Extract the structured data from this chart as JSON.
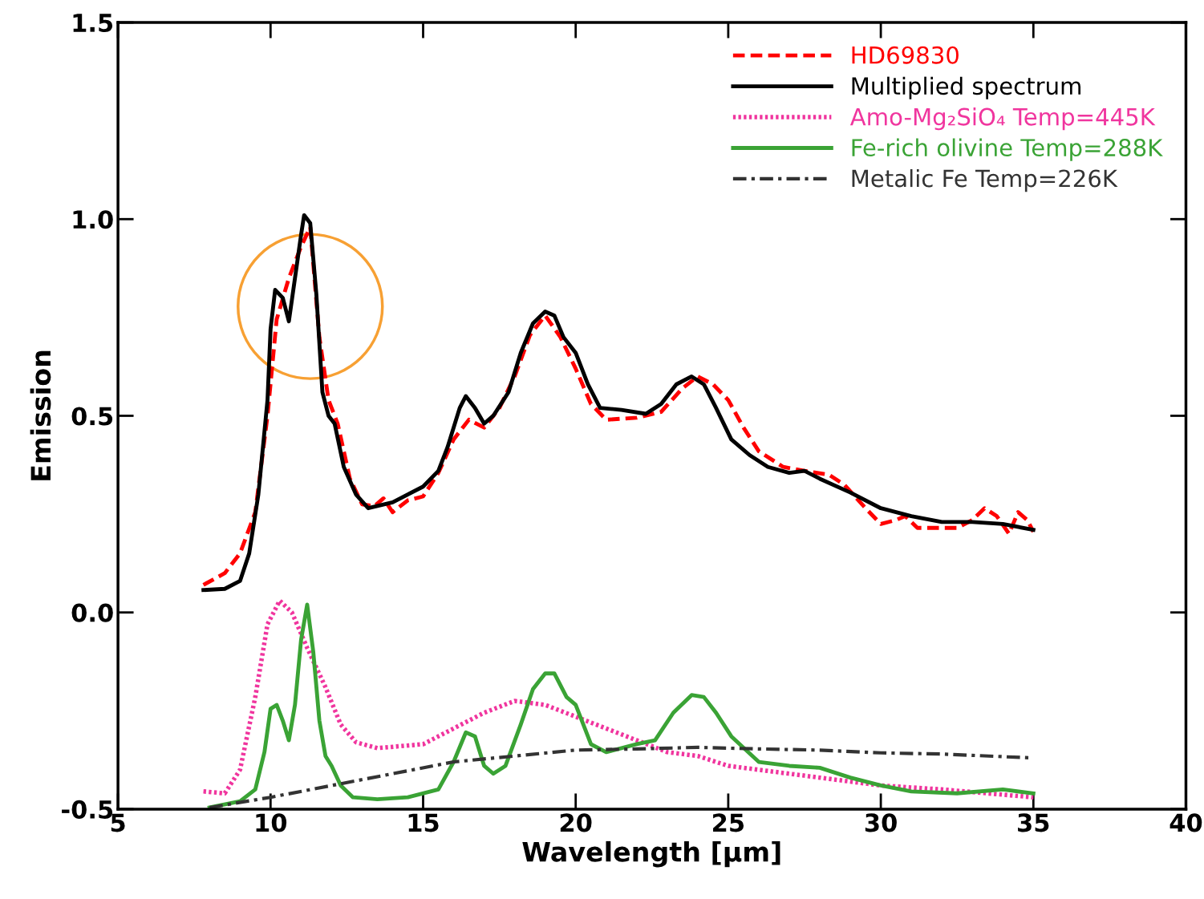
{
  "chart_data": {
    "type": "line",
    "xlabel": "Wavelength [μm]",
    "ylabel": "Emission",
    "xlim": [
      5,
      40
    ],
    "xticks": [
      5,
      10,
      15,
      20,
      25,
      30,
      35,
      40
    ],
    "ylim": [
      -0.5,
      1.5
    ],
    "yticks": [
      {
        "value": -0.5,
        "label": "-0.5"
      },
      {
        "value": 0,
        "label": "0.0"
      },
      {
        "value": 0.5,
        "label": "0.5"
      },
      {
        "value": 1,
        "label": "1.0"
      },
      {
        "value": 1.5,
        "label": "1.5"
      }
    ],
    "grid": false,
    "legend": "top right",
    "series": [
      {
        "name": "HD69830",
        "color": "#ff0000",
        "line_style": "dashed",
        "x": [
          7.8,
          8.5,
          9.0,
          9.5,
          9.9,
          10.2,
          10.6,
          11.0,
          11.3,
          11.6,
          11.9,
          12.2,
          12.6,
          13.0,
          13.4,
          13.7,
          14.0,
          14.5,
          15.0,
          15.5,
          16.0,
          16.5,
          17.0,
          17.5,
          18.0,
          18.5,
          19.0,
          19.5,
          20.0,
          20.5,
          21.0,
          22.0,
          22.8,
          23.5,
          24.0,
          24.5,
          25.0,
          25.5,
          26.0,
          26.8,
          27.5,
          28.3,
          28.8,
          29.5,
          30.0,
          30.5,
          30.8,
          31.2,
          32.0,
          32.5,
          33.0,
          33.4,
          33.8,
          34.2,
          34.5,
          34.8,
          35.0
        ],
        "values": [
          0.07,
          0.1,
          0.15,
          0.255,
          0.5,
          0.745,
          0.85,
          0.93,
          0.98,
          0.7,
          0.54,
          0.48,
          0.34,
          0.275,
          0.27,
          0.29,
          0.255,
          0.285,
          0.295,
          0.355,
          0.44,
          0.49,
          0.47,
          0.52,
          0.6,
          0.705,
          0.755,
          0.7,
          0.62,
          0.53,
          0.49,
          0.495,
          0.51,
          0.57,
          0.6,
          0.58,
          0.54,
          0.47,
          0.41,
          0.37,
          0.36,
          0.35,
          0.325,
          0.265,
          0.225,
          0.235,
          0.245,
          0.215,
          0.215,
          0.215,
          0.235,
          0.265,
          0.245,
          0.2,
          0.255,
          0.235,
          0.205
        ]
      },
      {
        "name": "Multiplied spectrum",
        "color": "#000000",
        "line_style": "solid",
        "x": [
          7.8,
          8.5,
          9.0,
          9.3,
          9.6,
          9.9,
          10.0,
          10.15,
          10.4,
          10.6,
          10.8,
          11.0,
          11.1,
          11.3,
          11.5,
          11.7,
          11.9,
          12.1,
          12.4,
          12.8,
          13.2,
          14.0,
          15.0,
          15.5,
          15.8,
          16.2,
          16.4,
          16.7,
          17.0,
          17.3,
          17.8,
          18.2,
          18.6,
          19.0,
          19.3,
          19.6,
          20.0,
          20.4,
          20.8,
          21.5,
          22.3,
          22.8,
          23.3,
          23.8,
          24.2,
          24.6,
          25.1,
          25.7,
          26.3,
          27.0,
          27.5,
          28.0,
          29.0,
          30.0,
          31.0,
          32.0,
          33.0,
          34.0,
          35.0
        ],
        "values": [
          0.057,
          0.06,
          0.08,
          0.15,
          0.3,
          0.54,
          0.72,
          0.82,
          0.8,
          0.74,
          0.85,
          0.96,
          1.01,
          0.99,
          0.81,
          0.56,
          0.5,
          0.48,
          0.37,
          0.3,
          0.265,
          0.28,
          0.32,
          0.36,
          0.42,
          0.52,
          0.55,
          0.52,
          0.48,
          0.5,
          0.56,
          0.66,
          0.735,
          0.765,
          0.755,
          0.7,
          0.66,
          0.58,
          0.52,
          0.515,
          0.505,
          0.53,
          0.58,
          0.6,
          0.58,
          0.52,
          0.44,
          0.4,
          0.37,
          0.355,
          0.36,
          0.34,
          0.305,
          0.265,
          0.245,
          0.23,
          0.23,
          0.225,
          0.21
        ]
      },
      {
        "name": "Amo-Mg₂SiO₄ Temp=445K",
        "color": "#f0359e",
        "line_style": "dotted",
        "x": [
          7.8,
          8.5,
          9.0,
          9.5,
          9.9,
          10.3,
          10.7,
          11.2,
          11.8,
          12.3,
          12.8,
          13.5,
          15.0,
          16.0,
          17.0,
          18.0,
          19.0,
          20.0,
          21.0,
          22.0,
          23.0,
          24.0,
          25.0,
          26.0,
          28.0,
          30.0,
          32.0,
          35.0
        ],
        "values": [
          -0.455,
          -0.46,
          -0.4,
          -0.215,
          -0.03,
          0.03,
          0.0,
          -0.09,
          -0.19,
          -0.285,
          -0.33,
          -0.345,
          -0.335,
          -0.295,
          -0.255,
          -0.225,
          -0.235,
          -0.265,
          -0.295,
          -0.325,
          -0.355,
          -0.365,
          -0.39,
          -0.4,
          -0.42,
          -0.44,
          -0.45,
          -0.47
        ]
      },
      {
        "name": "Fe-rich olivine Temp=288K",
        "color": "#3aa335",
        "line_style": "solid",
        "x": [
          8.0,
          9.0,
          9.5,
          9.8,
          10.0,
          10.2,
          10.4,
          10.6,
          10.8,
          11.0,
          11.2,
          11.4,
          11.6,
          11.8,
          12.0,
          12.3,
          12.7,
          13.5,
          14.5,
          15.5,
          16.0,
          16.4,
          16.7,
          17.0,
          17.3,
          17.7,
          18.2,
          18.6,
          19.0,
          19.3,
          19.7,
          20.0,
          20.5,
          21.0,
          22.0,
          22.6,
          23.2,
          23.8,
          24.2,
          24.6,
          25.1,
          26.0,
          27.0,
          28.0,
          29.0,
          30.0,
          31.0,
          32.5,
          34.0,
          35.0
        ],
        "values": [
          -0.496,
          -0.48,
          -0.45,
          -0.355,
          -0.245,
          -0.235,
          -0.275,
          -0.325,
          -0.235,
          -0.07,
          0.02,
          -0.1,
          -0.275,
          -0.365,
          -0.39,
          -0.44,
          -0.47,
          -0.475,
          -0.47,
          -0.45,
          -0.38,
          -0.305,
          -0.315,
          -0.39,
          -0.41,
          -0.39,
          -0.285,
          -0.195,
          -0.155,
          -0.155,
          -0.215,
          -0.235,
          -0.335,
          -0.355,
          -0.335,
          -0.325,
          -0.255,
          -0.21,
          -0.215,
          -0.255,
          -0.315,
          -0.38,
          -0.39,
          -0.395,
          -0.42,
          -0.44,
          -0.455,
          -0.46,
          -0.45,
          -0.46
        ]
      },
      {
        "name": "Metalic Fe Temp=226K",
        "color": "#333333",
        "line_style": "dashdot",
        "x": [
          8.0,
          10.0,
          12.0,
          14.0,
          16.0,
          18.0,
          20.0,
          22.0,
          24.0,
          26.0,
          28.0,
          30.0,
          32.0,
          35.0
        ],
        "values": [
          -0.496,
          -0.47,
          -0.44,
          -0.41,
          -0.38,
          -0.365,
          -0.35,
          -0.347,
          -0.343,
          -0.347,
          -0.35,
          -0.357,
          -0.36,
          -0.37
        ]
      }
    ]
  }
}
